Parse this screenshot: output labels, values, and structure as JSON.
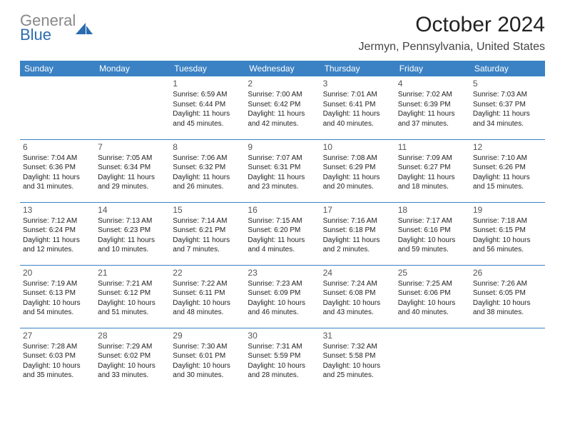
{
  "colors": {
    "header_blue": "#3b82c4",
    "divider_blue": "#3b82c4",
    "text_dark": "#333333",
    "logo_gray": "#888888",
    "logo_blue": "#2b6cb0",
    "background": "#ffffff"
  },
  "logo": {
    "word1": "General",
    "word2": "Blue"
  },
  "title": "October 2024",
  "subtitle": "Jermyn, Pennsylvania, United States",
  "weekdays": [
    "Sunday",
    "Monday",
    "Tuesday",
    "Wednesday",
    "Thursday",
    "Friday",
    "Saturday"
  ],
  "typography": {
    "title_fontsize": 30,
    "subtitle_fontsize": 16,
    "header_fontsize": 12,
    "daynum_fontsize": 12,
    "cell_fontsize": 10
  },
  "weeks": [
    [
      null,
      null,
      {
        "day": "1",
        "sunrise": "Sunrise: 6:59 AM",
        "sunset": "Sunset: 6:44 PM",
        "daylight": "Daylight: 11 hours and 45 minutes."
      },
      {
        "day": "2",
        "sunrise": "Sunrise: 7:00 AM",
        "sunset": "Sunset: 6:42 PM",
        "daylight": "Daylight: 11 hours and 42 minutes."
      },
      {
        "day": "3",
        "sunrise": "Sunrise: 7:01 AM",
        "sunset": "Sunset: 6:41 PM",
        "daylight": "Daylight: 11 hours and 40 minutes."
      },
      {
        "day": "4",
        "sunrise": "Sunrise: 7:02 AM",
        "sunset": "Sunset: 6:39 PM",
        "daylight": "Daylight: 11 hours and 37 minutes."
      },
      {
        "day": "5",
        "sunrise": "Sunrise: 7:03 AM",
        "sunset": "Sunset: 6:37 PM",
        "daylight": "Daylight: 11 hours and 34 minutes."
      }
    ],
    [
      {
        "day": "6",
        "sunrise": "Sunrise: 7:04 AM",
        "sunset": "Sunset: 6:36 PM",
        "daylight": "Daylight: 11 hours and 31 minutes."
      },
      {
        "day": "7",
        "sunrise": "Sunrise: 7:05 AM",
        "sunset": "Sunset: 6:34 PM",
        "daylight": "Daylight: 11 hours and 29 minutes."
      },
      {
        "day": "8",
        "sunrise": "Sunrise: 7:06 AM",
        "sunset": "Sunset: 6:32 PM",
        "daylight": "Daylight: 11 hours and 26 minutes."
      },
      {
        "day": "9",
        "sunrise": "Sunrise: 7:07 AM",
        "sunset": "Sunset: 6:31 PM",
        "daylight": "Daylight: 11 hours and 23 minutes."
      },
      {
        "day": "10",
        "sunrise": "Sunrise: 7:08 AM",
        "sunset": "Sunset: 6:29 PM",
        "daylight": "Daylight: 11 hours and 20 minutes."
      },
      {
        "day": "11",
        "sunrise": "Sunrise: 7:09 AM",
        "sunset": "Sunset: 6:27 PM",
        "daylight": "Daylight: 11 hours and 18 minutes."
      },
      {
        "day": "12",
        "sunrise": "Sunrise: 7:10 AM",
        "sunset": "Sunset: 6:26 PM",
        "daylight": "Daylight: 11 hours and 15 minutes."
      }
    ],
    [
      {
        "day": "13",
        "sunrise": "Sunrise: 7:12 AM",
        "sunset": "Sunset: 6:24 PM",
        "daylight": "Daylight: 11 hours and 12 minutes."
      },
      {
        "day": "14",
        "sunrise": "Sunrise: 7:13 AM",
        "sunset": "Sunset: 6:23 PM",
        "daylight": "Daylight: 11 hours and 10 minutes."
      },
      {
        "day": "15",
        "sunrise": "Sunrise: 7:14 AM",
        "sunset": "Sunset: 6:21 PM",
        "daylight": "Daylight: 11 hours and 7 minutes."
      },
      {
        "day": "16",
        "sunrise": "Sunrise: 7:15 AM",
        "sunset": "Sunset: 6:20 PM",
        "daylight": "Daylight: 11 hours and 4 minutes."
      },
      {
        "day": "17",
        "sunrise": "Sunrise: 7:16 AM",
        "sunset": "Sunset: 6:18 PM",
        "daylight": "Daylight: 11 hours and 2 minutes."
      },
      {
        "day": "18",
        "sunrise": "Sunrise: 7:17 AM",
        "sunset": "Sunset: 6:16 PM",
        "daylight": "Daylight: 10 hours and 59 minutes."
      },
      {
        "day": "19",
        "sunrise": "Sunrise: 7:18 AM",
        "sunset": "Sunset: 6:15 PM",
        "daylight": "Daylight: 10 hours and 56 minutes."
      }
    ],
    [
      {
        "day": "20",
        "sunrise": "Sunrise: 7:19 AM",
        "sunset": "Sunset: 6:13 PM",
        "daylight": "Daylight: 10 hours and 54 minutes."
      },
      {
        "day": "21",
        "sunrise": "Sunrise: 7:21 AM",
        "sunset": "Sunset: 6:12 PM",
        "daylight": "Daylight: 10 hours and 51 minutes."
      },
      {
        "day": "22",
        "sunrise": "Sunrise: 7:22 AM",
        "sunset": "Sunset: 6:11 PM",
        "daylight": "Daylight: 10 hours and 48 minutes."
      },
      {
        "day": "23",
        "sunrise": "Sunrise: 7:23 AM",
        "sunset": "Sunset: 6:09 PM",
        "daylight": "Daylight: 10 hours and 46 minutes."
      },
      {
        "day": "24",
        "sunrise": "Sunrise: 7:24 AM",
        "sunset": "Sunset: 6:08 PM",
        "daylight": "Daylight: 10 hours and 43 minutes."
      },
      {
        "day": "25",
        "sunrise": "Sunrise: 7:25 AM",
        "sunset": "Sunset: 6:06 PM",
        "daylight": "Daylight: 10 hours and 40 minutes."
      },
      {
        "day": "26",
        "sunrise": "Sunrise: 7:26 AM",
        "sunset": "Sunset: 6:05 PM",
        "daylight": "Daylight: 10 hours and 38 minutes."
      }
    ],
    [
      {
        "day": "27",
        "sunrise": "Sunrise: 7:28 AM",
        "sunset": "Sunset: 6:03 PM",
        "daylight": "Daylight: 10 hours and 35 minutes."
      },
      {
        "day": "28",
        "sunrise": "Sunrise: 7:29 AM",
        "sunset": "Sunset: 6:02 PM",
        "daylight": "Daylight: 10 hours and 33 minutes."
      },
      {
        "day": "29",
        "sunrise": "Sunrise: 7:30 AM",
        "sunset": "Sunset: 6:01 PM",
        "daylight": "Daylight: 10 hours and 30 minutes."
      },
      {
        "day": "30",
        "sunrise": "Sunrise: 7:31 AM",
        "sunset": "Sunset: 5:59 PM",
        "daylight": "Daylight: 10 hours and 28 minutes."
      },
      {
        "day": "31",
        "sunrise": "Sunrise: 7:32 AM",
        "sunset": "Sunset: 5:58 PM",
        "daylight": "Daylight: 10 hours and 25 minutes."
      },
      null,
      null
    ]
  ]
}
